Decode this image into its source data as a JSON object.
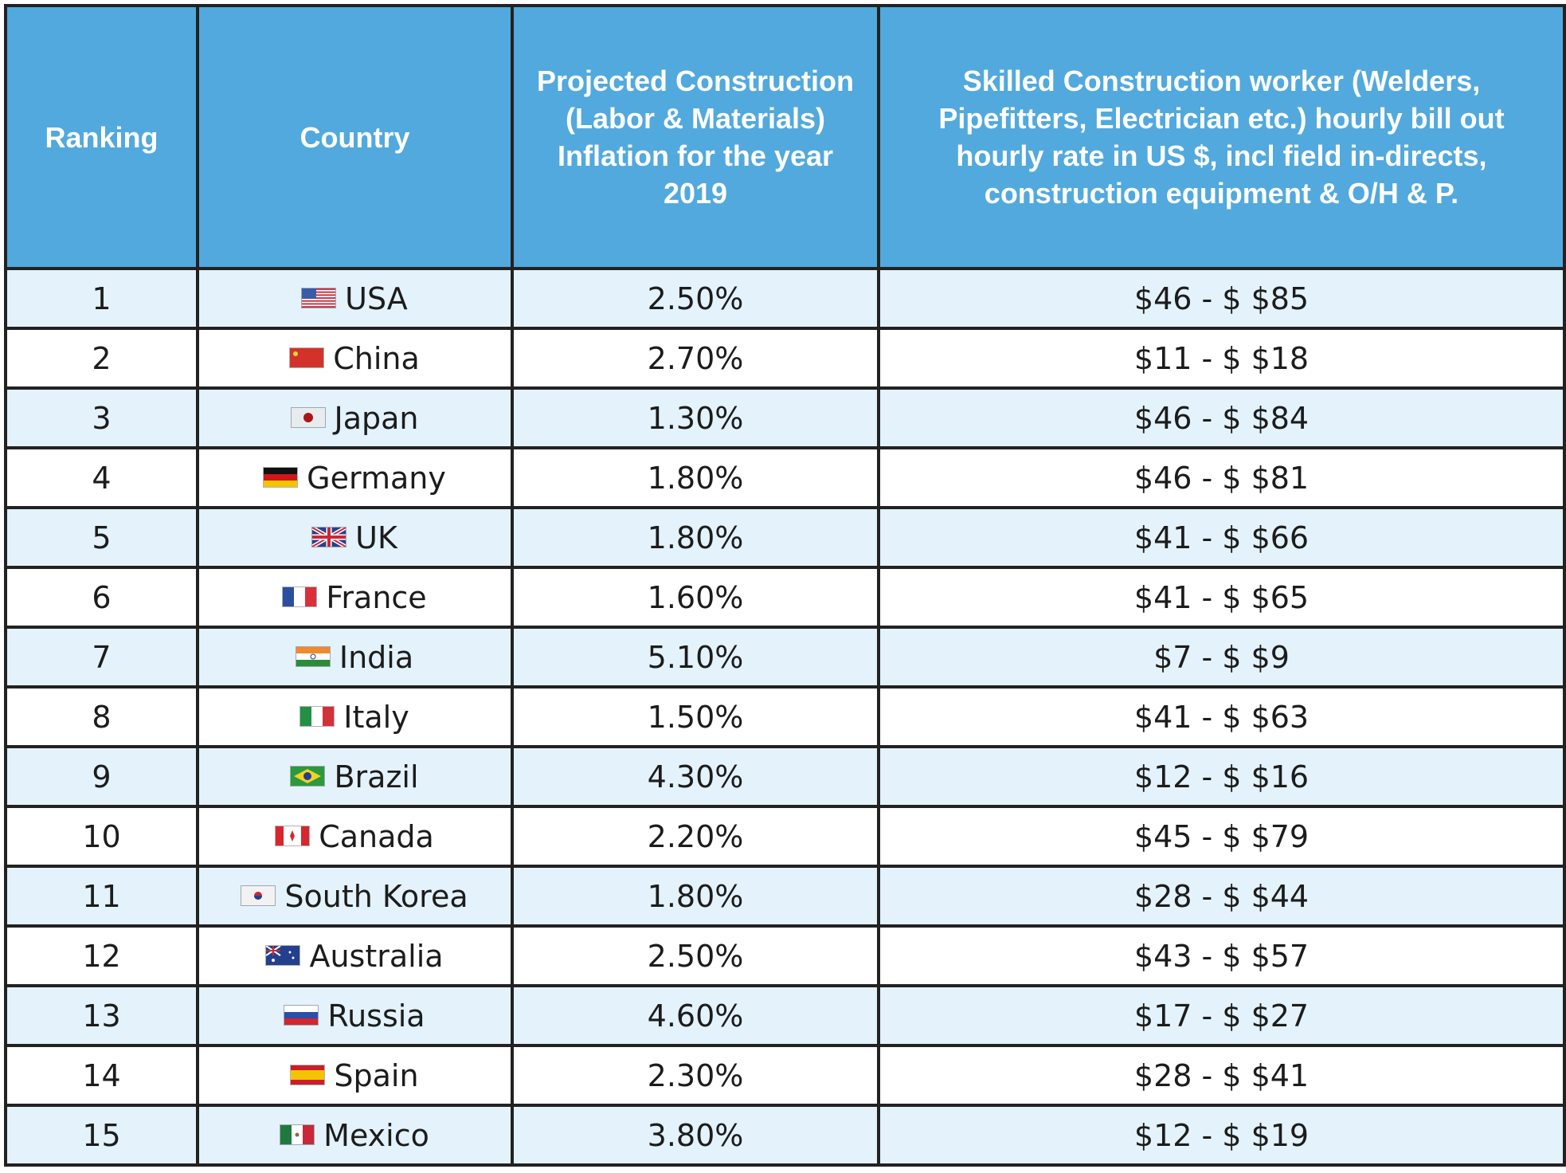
{
  "headers": {
    "ranking": "Ranking",
    "country": "Country",
    "inflation": "Projected Construction (Labor & Materials) Inflation for the year 2019",
    "rate": "Skilled Construction worker (Welders, Pipefitters, Electrician etc.) hourly bill out hourly rate in US $, incl field in-directs, construction equipment & O/H & P."
  },
  "colors": {
    "header_bg": "#52a9dd",
    "row_alt_bg": "#e3f2fb",
    "border": "#222222"
  },
  "rows": [
    {
      "rank": "1",
      "country": "USA",
      "flag": "us-flag-icon",
      "inflation": "2.50%",
      "rate": "$46 - $ $85"
    },
    {
      "rank": "2",
      "country": "China",
      "flag": "china-flag-icon",
      "inflation": "2.70%",
      "rate": "$11 - $ $18"
    },
    {
      "rank": "3",
      "country": "Japan",
      "flag": "japan-flag-icon",
      "inflation": "1.30%",
      "rate": "$46 - $ $84"
    },
    {
      "rank": "4",
      "country": "Germany",
      "flag": "germany-flag-icon",
      "inflation": "1.80%",
      "rate": "$46 - $ $81"
    },
    {
      "rank": "5",
      "country": "UK",
      "flag": "uk-flag-icon",
      "inflation": "1.80%",
      "rate": "$41 - $ $66"
    },
    {
      "rank": "6",
      "country": "France",
      "flag": "france-flag-icon",
      "inflation": "1.60%",
      "rate": "$41 - $ $65"
    },
    {
      "rank": "7",
      "country": "India",
      "flag": "india-flag-icon",
      "inflation": "5.10%",
      "rate": "$7 - $ $9"
    },
    {
      "rank": "8",
      "country": "Italy",
      "flag": "italy-flag-icon",
      "inflation": "1.50%",
      "rate": "$41 - $ $63"
    },
    {
      "rank": "9",
      "country": "Brazil",
      "flag": "brazil-flag-icon",
      "inflation": "4.30%",
      "rate": "$12 - $ $16"
    },
    {
      "rank": "10",
      "country": "Canada",
      "flag": "canada-flag-icon",
      "inflation": "2.20%",
      "rate": "$45 - $ $79"
    },
    {
      "rank": "11",
      "country": "South Korea",
      "flag": "south-korea-flag-icon",
      "inflation": "1.80%",
      "rate": "$28 - $ $44"
    },
    {
      "rank": "12",
      "country": "Australia",
      "flag": "australia-flag-icon",
      "inflation": "2.50%",
      "rate": "$43 - $ $57"
    },
    {
      "rank": "13",
      "country": "Russia",
      "flag": "russia-flag-icon",
      "inflation": "4.60%",
      "rate": "$17 - $ $27"
    },
    {
      "rank": "14",
      "country": "Spain",
      "flag": "spain-flag-icon",
      "inflation": "2.30%",
      "rate": "$28 - $ $41"
    },
    {
      "rank": "15",
      "country": "Mexico",
      "flag": "mexico-flag-icon",
      "inflation": "3.80%",
      "rate": "$12 - $ $19"
    }
  ]
}
